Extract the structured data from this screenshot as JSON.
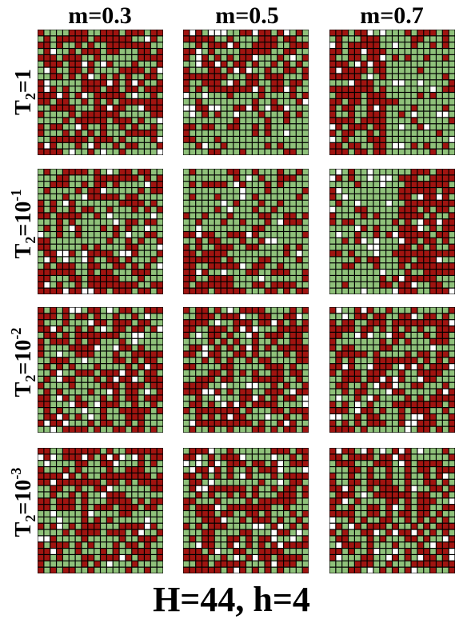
{
  "columns": [
    "m=0.3",
    "m=0.5",
    "m=0.7"
  ],
  "rows": [
    {
      "base": "T",
      "sub": "2",
      "eq": "=1",
      "sup": ""
    },
    {
      "base": "T",
      "sub": "2",
      "eq": "=10",
      "sup": "-1"
    },
    {
      "base": "T",
      "sub": "2",
      "eq": "=10",
      "sup": "-2"
    },
    {
      "base": "T",
      "sub": "2",
      "eq": "=10",
      "sup": "-3"
    }
  ],
  "footer": "H=44, h=4",
  "colors": {
    "red": "#a01410",
    "green": "#8fc17a",
    "white": "#ffffff",
    "border": "#000000"
  },
  "cells_per_side": 20
}
